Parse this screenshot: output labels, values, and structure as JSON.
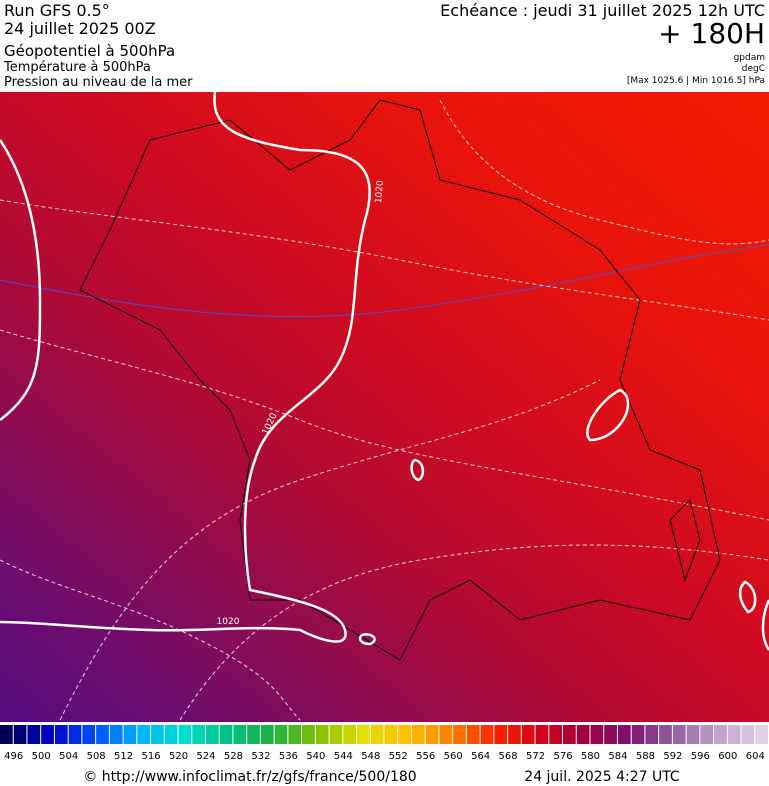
{
  "header": {
    "run": "Run GFS 0.5°",
    "date": "24 juillet 2025 00Z",
    "title": "Géopotentiel à 500hPa",
    "subtitle1": "Température à 500hPa",
    "subtitle2": "Pression au niveau de la mer",
    "forecast": "Echéance : jeudi 31 juillet 2025 12h UTC",
    "lead": "+ 180H",
    "unit1": "gpdam",
    "unit2": "degC",
    "range": "[Max 1025.6 | Min 1016.5] hPa"
  },
  "map": {
    "isobar_labels": [
      "1020",
      "1020",
      "1020"
    ]
  },
  "legend": {
    "labels": [
      496,
      500,
      504,
      508,
      512,
      516,
      520,
      524,
      528,
      532,
      536,
      540,
      544,
      548,
      552,
      556,
      560,
      564,
      568,
      572,
      576,
      580,
      584,
      588,
      592,
      596,
      600,
      604
    ]
  },
  "footer": {
    "url": "© http://www.infoclimat.fr/z/gfs/france/500/180",
    "timestamp": "24 juil. 2025  4:27 UTC"
  }
}
